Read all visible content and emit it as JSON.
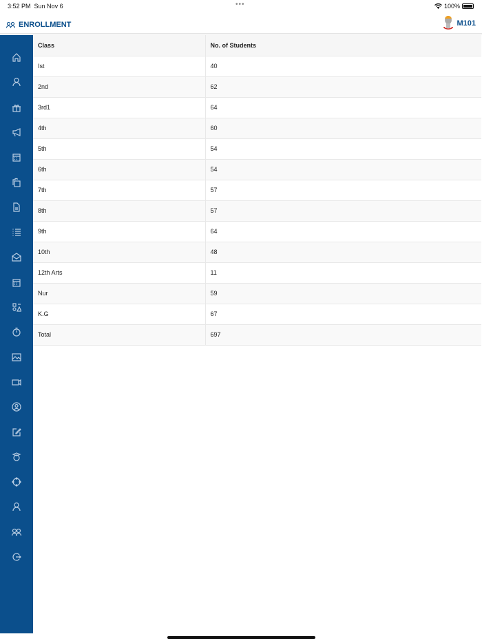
{
  "status": {
    "time": "3:52 PM",
    "date": "Sun Nov 6",
    "battery": "100%"
  },
  "header": {
    "title": "ENROLLMENT",
    "user": "M101"
  },
  "sidebar": {
    "icons": [
      "home-icon",
      "user-icon",
      "gift-icon",
      "megaphone-icon",
      "calendar-icon",
      "clipboard-icon",
      "document-icon",
      "list-icon",
      "mail-open-icon",
      "calendar-icon",
      "shapes-icon",
      "stopwatch-icon",
      "image-icon",
      "video-icon",
      "user-circle-icon",
      "edit-icon",
      "graduate-icon",
      "network-icon",
      "user-icon",
      "users-icon",
      "logout-icon"
    ]
  },
  "table": {
    "headers": [
      "Class",
      "No. of Students"
    ],
    "rows": [
      [
        "Ist",
        "40"
      ],
      [
        "2nd",
        "62"
      ],
      [
        "3rd1",
        "64"
      ],
      [
        "4th",
        "60"
      ],
      [
        "5th",
        "54"
      ],
      [
        "6th",
        "54"
      ],
      [
        "7th",
        "57"
      ],
      [
        "8th",
        "57"
      ],
      [
        "9th",
        "64"
      ],
      [
        "10th",
        "48"
      ],
      [
        "12th Arts",
        "11"
      ],
      [
        "Nur",
        "59"
      ],
      [
        "K.G",
        "67"
      ],
      [
        "Total",
        "697"
      ]
    ]
  },
  "colors": {
    "brand": "#0b4f8c"
  }
}
